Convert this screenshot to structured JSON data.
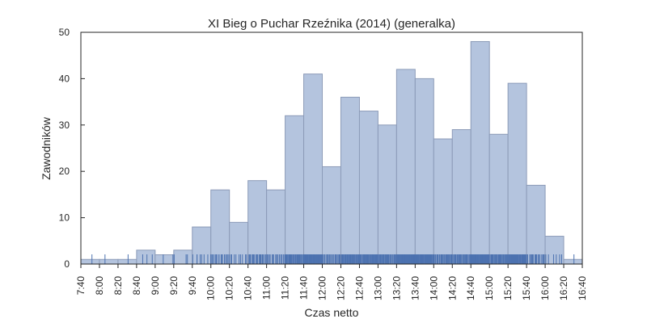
{
  "chart_data": {
    "type": "bar",
    "title": "XI Bieg o Puchar Rzeźnika (2014) (generalka)",
    "xlabel": "Czas netto",
    "ylabel": "Zawodników",
    "ylim": [
      0,
      50
    ],
    "yticks": [
      "0",
      "10",
      "20",
      "30",
      "40",
      "50"
    ],
    "xlim": [
      "7:40",
      "16:40"
    ],
    "xticks": [
      "7:40",
      "8:00",
      "8:20",
      "8:40",
      "9:00",
      "9:20",
      "9:40",
      "10:00",
      "10:20",
      "10:40",
      "11:00",
      "11:20",
      "11:40",
      "12:00",
      "12:20",
      "12:40",
      "13:00",
      "13:20",
      "13:40",
      "14:00",
      "14:20",
      "14:40",
      "15:00",
      "15:20",
      "15:40",
      "16:00",
      "16:20",
      "16:40"
    ],
    "bins": [
      {
        "start": "7:40",
        "end": "8:00",
        "count": 1
      },
      {
        "start": "8:00",
        "end": "8:20",
        "count": 1
      },
      {
        "start": "8:20",
        "end": "8:40",
        "count": 1
      },
      {
        "start": "8:40",
        "end": "9:00",
        "count": 3
      },
      {
        "start": "9:00",
        "end": "9:20",
        "count": 2
      },
      {
        "start": "9:20",
        "end": "9:40",
        "count": 3
      },
      {
        "start": "9:40",
        "end": "10:00",
        "count": 8
      },
      {
        "start": "10:00",
        "end": "10:20",
        "count": 16
      },
      {
        "start": "10:20",
        "end": "10:40",
        "count": 9
      },
      {
        "start": "10:40",
        "end": "11:00",
        "count": 18
      },
      {
        "start": "11:00",
        "end": "11:20",
        "count": 16
      },
      {
        "start": "11:20",
        "end": "11:40",
        "count": 32
      },
      {
        "start": "11:40",
        "end": "12:00",
        "count": 41
      },
      {
        "start": "12:00",
        "end": "12:20",
        "count": 21
      },
      {
        "start": "12:20",
        "end": "12:40",
        "count": 36
      },
      {
        "start": "12:40",
        "end": "13:00",
        "count": 33
      },
      {
        "start": "13:00",
        "end": "13:20",
        "count": 30
      },
      {
        "start": "13:20",
        "end": "13:40",
        "count": 42
      },
      {
        "start": "13:40",
        "end": "14:00",
        "count": 40
      },
      {
        "start": "14:00",
        "end": "14:20",
        "count": 27
      },
      {
        "start": "14:20",
        "end": "14:40",
        "count": 29
      },
      {
        "start": "14:40",
        "end": "15:00",
        "count": 48
      },
      {
        "start": "15:00",
        "end": "15:20",
        "count": 28
      },
      {
        "start": "15:20",
        "end": "15:40",
        "count": 39
      },
      {
        "start": "15:40",
        "end": "16:00",
        "count": 17
      },
      {
        "start": "16:00",
        "end": "16:20",
        "count": 6
      },
      {
        "start": "16:20",
        "end": "16:40",
        "count": 1
      }
    ],
    "rug": true,
    "grid": false,
    "colors": {
      "bar_fill": "#b4c4de",
      "bar_edge": "#8c9bb8",
      "rug": "#4c72b0"
    }
  }
}
